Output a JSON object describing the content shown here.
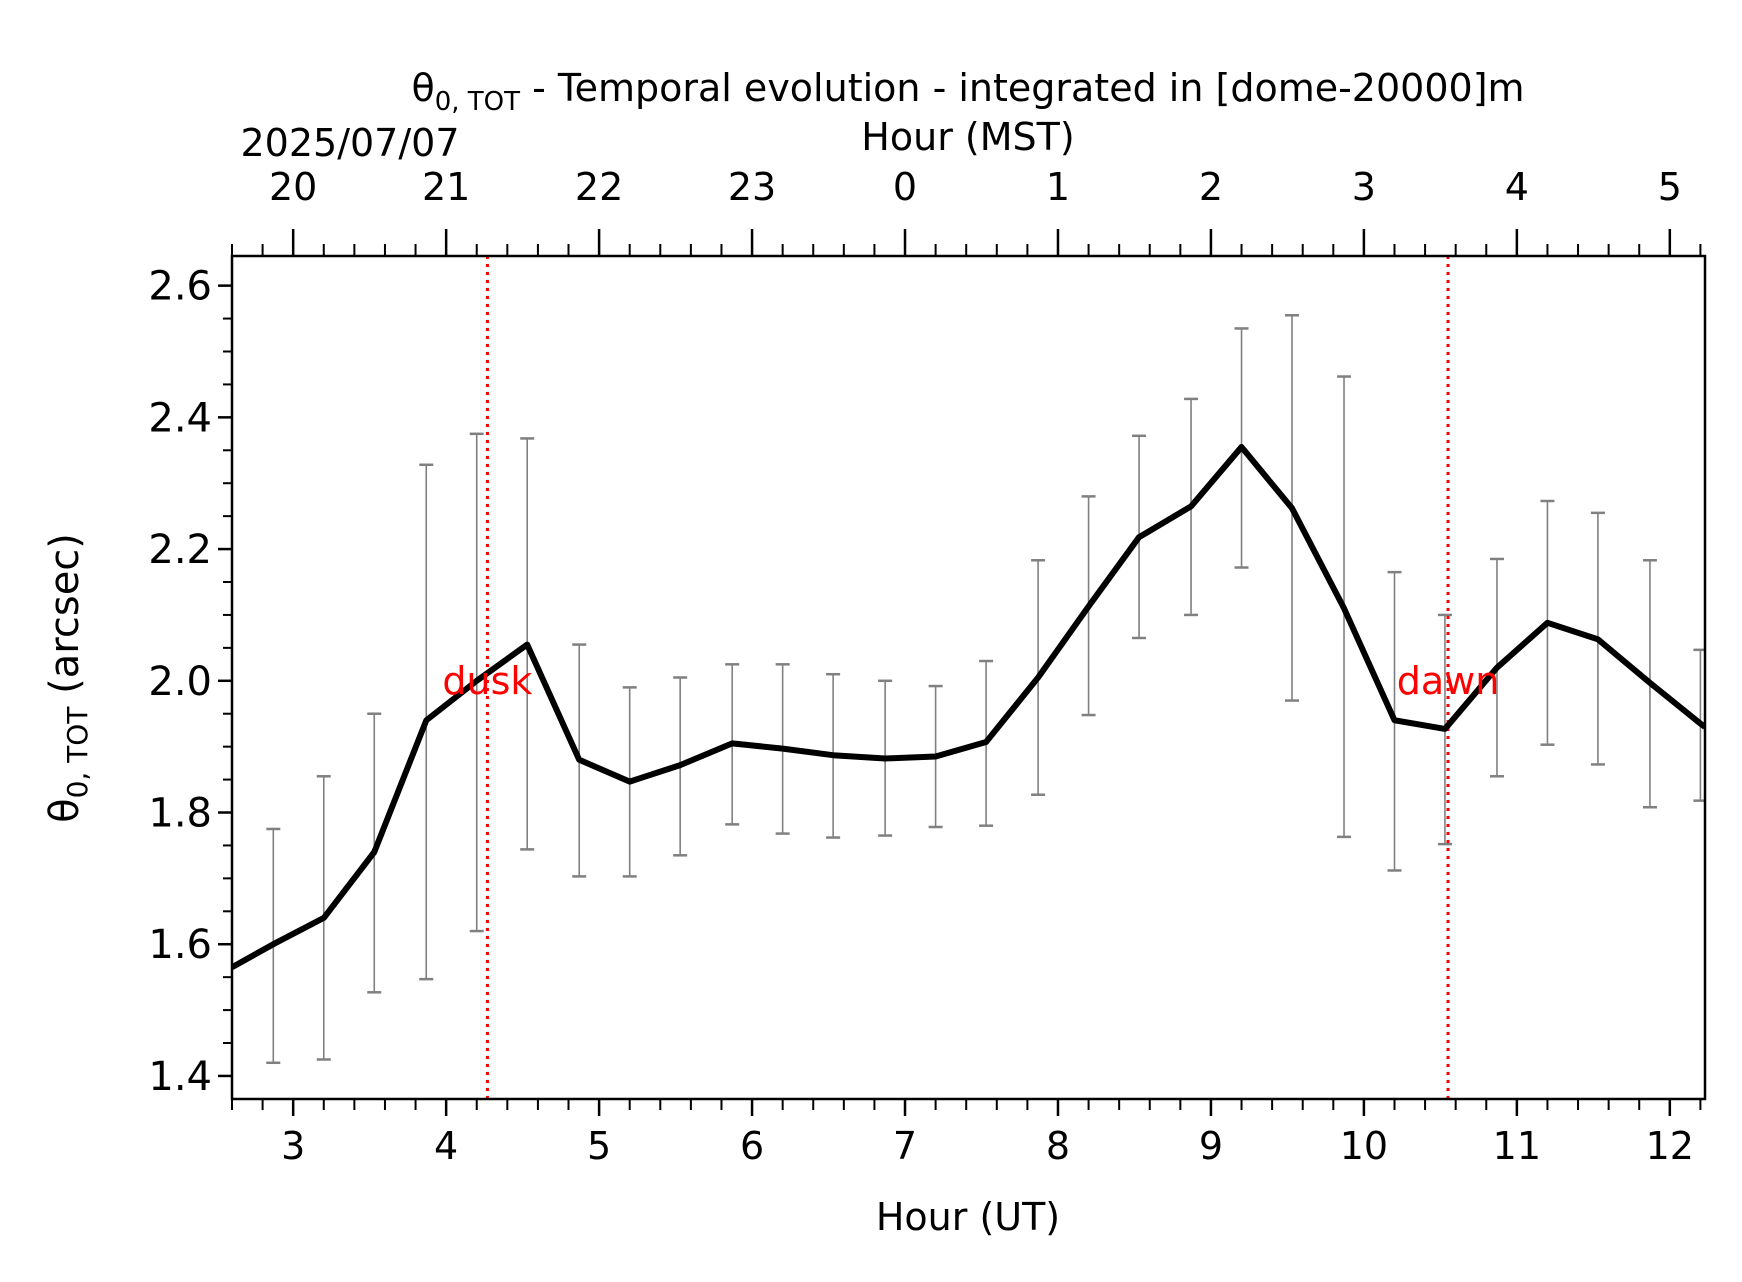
{
  "chart_data": {
    "type": "line",
    "title": "θ",
    "title_sub": "0, TOT",
    "title_rest": " - Temporal evolution - integrated in [dome-20000]m",
    "date_label": "2025/07/07",
    "top_xlabel": "Hour (MST)",
    "xlabel": "Hour (UT)",
    "ylabel_main": "θ",
    "ylabel_sub": "0, TOT",
    "ylabel_rest": " (arcsec)",
    "xlim": [
      2.6,
      12.23
    ],
    "ylim": [
      1.365,
      2.645
    ],
    "x_ticks": [
      3,
      4,
      5,
      6,
      7,
      8,
      9,
      10,
      11,
      12
    ],
    "x_tick_labels": [
      "3",
      "4",
      "5",
      "6",
      "7",
      "8",
      "9",
      "10",
      "11",
      "12"
    ],
    "y_ticks": [
      1.4,
      1.6,
      1.8,
      2.0,
      2.2,
      2.4,
      2.6
    ],
    "y_tick_labels": [
      "1.4",
      "1.6",
      "1.8",
      "2.0",
      "2.2",
      "2.4",
      "2.6"
    ],
    "top_ticks": [
      3,
      4,
      5,
      6,
      7,
      8,
      9,
      10,
      11,
      12
    ],
    "top_tick_labels": [
      "20",
      "21",
      "22",
      "23",
      "0",
      "1",
      "2",
      "3",
      "4",
      "5"
    ],
    "colors": {
      "line": "#000000",
      "errorbar": "#808080",
      "marker": "#ff0000"
    },
    "series": [
      {
        "x": [
          2.6,
          2.87,
          3.2,
          3.53,
          3.87,
          4.2,
          4.53,
          4.87,
          5.2,
          5.53,
          5.87,
          6.2,
          6.53,
          6.87,
          7.2,
          7.53,
          7.87,
          8.2,
          8.53,
          8.87,
          9.2,
          9.53,
          9.87,
          10.2,
          10.53,
          10.87,
          11.2,
          11.53,
          11.87,
          12.2,
          12.23
        ],
        "y": [
          1.565,
          1.6,
          1.64,
          1.74,
          1.94,
          2.0,
          2.055,
          1.88,
          1.847,
          1.872,
          1.905,
          1.897,
          1.887,
          1.882,
          1.885,
          1.907,
          2.005,
          2.113,
          2.218,
          2.265,
          2.355,
          2.262,
          2.11,
          1.94,
          1.927,
          2.02,
          2.088,
          2.063,
          1.997,
          1.935,
          1.93
        ]
      }
    ],
    "error_bars": [
      {
        "x": 2.87,
        "low": 1.42,
        "high": 1.775
      },
      {
        "x": 3.2,
        "low": 1.425,
        "high": 1.855
      },
      {
        "x": 3.53,
        "low": 1.527,
        "high": 1.95
      },
      {
        "x": 3.87,
        "low": 1.547,
        "high": 2.328
      },
      {
        "x": 4.2,
        "low": 1.62,
        "high": 2.375
      },
      {
        "x": 4.53,
        "low": 1.744,
        "high": 2.368
      },
      {
        "x": 4.87,
        "low": 1.703,
        "high": 2.055
      },
      {
        "x": 5.2,
        "low": 1.703,
        "high": 1.99
      },
      {
        "x": 5.53,
        "low": 1.735,
        "high": 2.005
      },
      {
        "x": 5.87,
        "low": 1.782,
        "high": 2.025
      },
      {
        "x": 6.2,
        "low": 1.768,
        "high": 2.025
      },
      {
        "x": 6.53,
        "low": 1.762,
        "high": 2.01
      },
      {
        "x": 6.87,
        "low": 1.765,
        "high": 2.0
      },
      {
        "x": 7.2,
        "low": 1.778,
        "high": 1.992
      },
      {
        "x": 7.53,
        "low": 1.78,
        "high": 2.03
      },
      {
        "x": 7.87,
        "low": 1.827,
        "high": 2.183
      },
      {
        "x": 8.2,
        "low": 1.948,
        "high": 2.28
      },
      {
        "x": 8.53,
        "low": 2.065,
        "high": 2.372
      },
      {
        "x": 8.87,
        "low": 2.1,
        "high": 2.428
      },
      {
        "x": 9.2,
        "low": 2.172,
        "high": 2.535
      },
      {
        "x": 9.53,
        "low": 1.97,
        "high": 2.555
      },
      {
        "x": 9.87,
        "low": 1.763,
        "high": 2.462
      },
      {
        "x": 10.2,
        "low": 1.712,
        "high": 2.165
      },
      {
        "x": 10.53,
        "low": 1.752,
        "high": 2.1
      },
      {
        "x": 10.87,
        "low": 1.855,
        "high": 2.185
      },
      {
        "x": 11.2,
        "low": 1.903,
        "high": 2.273
      },
      {
        "x": 11.53,
        "low": 1.873,
        "high": 2.255
      },
      {
        "x": 11.87,
        "low": 1.808,
        "high": 2.183
      },
      {
        "x": 12.2,
        "low": 1.818,
        "high": 2.047
      }
    ],
    "markers": [
      {
        "x": 4.27,
        "label": "dusk"
      },
      {
        "x": 10.55,
        "label": "dawn"
      }
    ],
    "grid": false,
    "legend": "none"
  }
}
